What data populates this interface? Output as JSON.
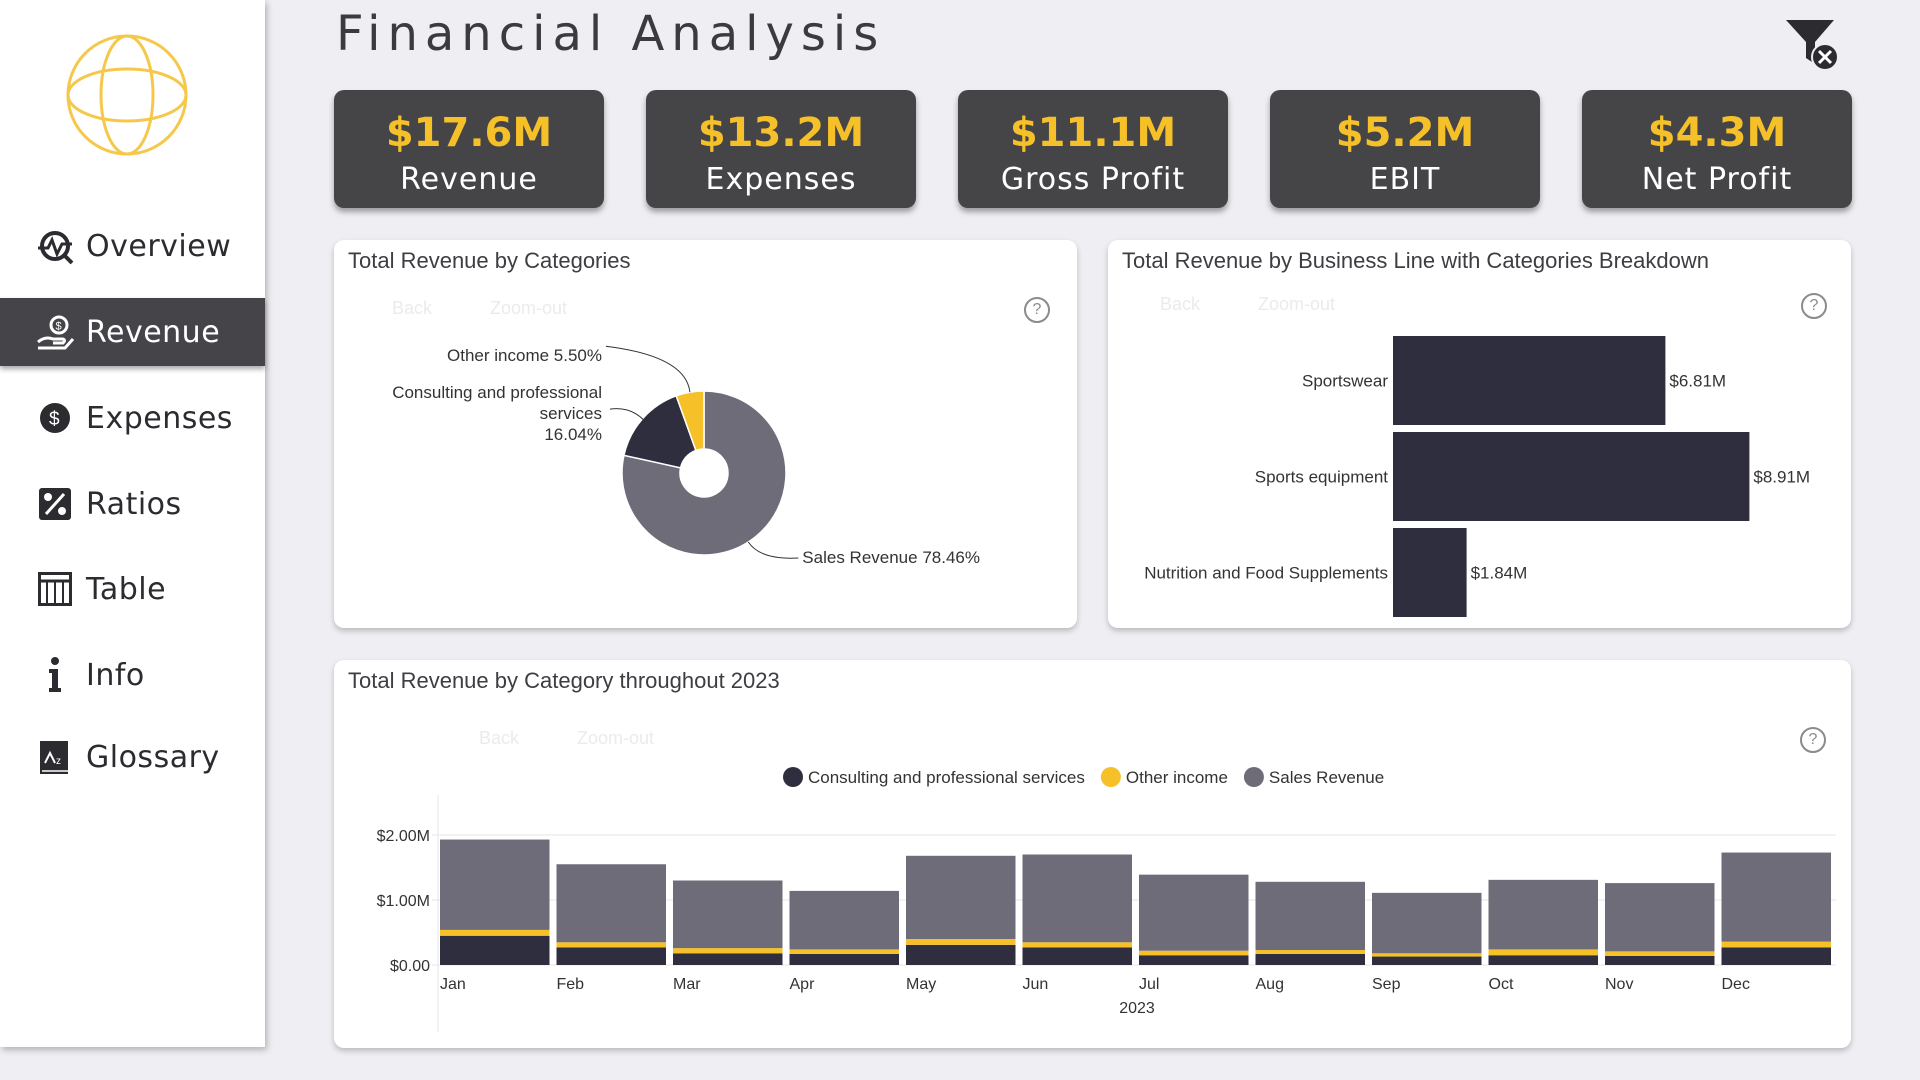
{
  "sidebar": {
    "items": [
      {
        "label": "Overview",
        "icon": "overview-icon"
      },
      {
        "label": "Revenue",
        "icon": "revenue-icon",
        "active": true
      },
      {
        "label": "Expenses",
        "icon": "dollar-icon"
      },
      {
        "label": "Ratios",
        "icon": "percent-icon"
      },
      {
        "label": "Table",
        "icon": "table-icon"
      },
      {
        "label": "Info",
        "icon": "info-icon"
      },
      {
        "label": "Glossary",
        "icon": "glossary-icon"
      }
    ]
  },
  "header": {
    "title": "Financial Analysis"
  },
  "kpis": [
    {
      "value": "$17.6M",
      "label": "Revenue"
    },
    {
      "value": "$13.2M",
      "label": "Expenses"
    },
    {
      "value": "$11.1M",
      "label": "Gross Profit"
    },
    {
      "value": "$5.2M",
      "label": "EBIT"
    },
    {
      "value": "$4.3M",
      "label": "Net Profit"
    }
  ],
  "controls": {
    "back": "Back",
    "zoom_out": "Zoom-out",
    "help": "?"
  },
  "colors": {
    "accent": "#f6c028",
    "dark": "#2f2e3e",
    "medium": "#6e6c78",
    "kpi_bg": "#454548"
  },
  "panels": {
    "donut": {
      "title": "Total Revenue by Categories"
    },
    "bars": {
      "title": "Total Revenue by Business Line with Categories Breakdown"
    },
    "monthly": {
      "title": "Total Revenue by Category throughout 2023"
    }
  },
  "chart_data": [
    {
      "type": "pie",
      "title": "Total Revenue by Categories",
      "donut": true,
      "slices": [
        {
          "name": "Sales Revenue",
          "value": 78.46,
          "label": "Sales Revenue 78.46%",
          "color": "#6e6c78"
        },
        {
          "name": "Consulting and professional services",
          "value": 16.04,
          "label_lines": [
            "Consulting and professional",
            "services",
            "16.04%"
          ],
          "color": "#2f2e3e"
        },
        {
          "name": "Other income",
          "value": 5.5,
          "label": "Other income 5.50%",
          "color": "#f6c028"
        }
      ]
    },
    {
      "type": "bar",
      "orientation": "horizontal",
      "title": "Total Revenue by Business Line with Categories Breakdown",
      "categories": [
        "Sportswear",
        "Sports equipment",
        "Nutrition and Food Supplements"
      ],
      "values": [
        6.81,
        8.91,
        1.84
      ],
      "value_labels": [
        "$6.81M",
        "$8.91M",
        "$1.84M"
      ],
      "unit": "$M",
      "xlim": [
        0,
        11
      ],
      "color": "#2f2e3e"
    },
    {
      "type": "bar",
      "stacked": true,
      "title": "Total Revenue by Category throughout 2023",
      "categories": [
        "Jan",
        "Feb",
        "Mar",
        "Apr",
        "May",
        "Jun",
        "Jul",
        "Aug",
        "Sep",
        "Oct",
        "Nov",
        "Dec"
      ],
      "xlabel": "2023",
      "y_ticks": [
        {
          "value": 0,
          "label": "$0.00"
        },
        {
          "value": 1,
          "label": "$1.00M"
        },
        {
          "value": 2,
          "label": "$2.00M"
        }
      ],
      "ylim": [
        0,
        2.15
      ],
      "legend": "top-center",
      "series": [
        {
          "name": "Consulting and professional services",
          "color": "#2f2e3e",
          "values": [
            0.45,
            0.27,
            0.18,
            0.17,
            0.31,
            0.27,
            0.15,
            0.17,
            0.13,
            0.15,
            0.14,
            0.27
          ]
        },
        {
          "name": "Other income",
          "color": "#f6c028",
          "values": [
            0.09,
            0.08,
            0.08,
            0.07,
            0.09,
            0.08,
            0.07,
            0.06,
            0.05,
            0.09,
            0.07,
            0.09
          ]
        },
        {
          "name": "Sales Revenue",
          "color": "#6e6c78",
          "values": [
            1.39,
            1.2,
            1.04,
            0.9,
            1.28,
            1.35,
            1.17,
            1.05,
            0.93,
            1.07,
            1.05,
            1.37
          ]
        }
      ]
    }
  ]
}
